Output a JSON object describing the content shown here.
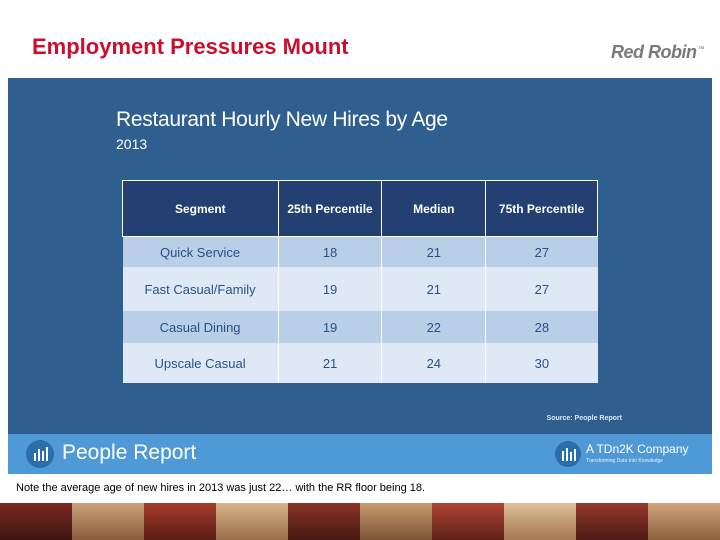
{
  "slide": {
    "title": "Employment Pressures Mount",
    "logo": "Red Robin",
    "logo_mark": "™"
  },
  "panel": {
    "title": "Restaurant Hourly New Hires by Age",
    "subtitle": "2013",
    "source": "Source: People Report"
  },
  "table": {
    "headers": [
      "Segment",
      "25th Percentile",
      "Median",
      "75th Percentile"
    ],
    "rows": [
      [
        "Quick Service",
        "18",
        "21",
        "27"
      ],
      [
        "Fast Casual/Family",
        "19",
        "21",
        "27"
      ],
      [
        "Casual Dining",
        "19",
        "22",
        "28"
      ],
      [
        "Upscale Casual",
        "21",
        "24",
        "30"
      ]
    ]
  },
  "footer": {
    "brand": "People Report",
    "company": "A TDn2K Company",
    "tagline": "Transforming Data Into Knowledge"
  },
  "note": "Note the average age of new hires in 2013 was just 22… with the RR floor being 18.",
  "colors": {
    "title_red": "#c8102e",
    "panel_blue": "#2f5f8f",
    "header_navy": "#243f72",
    "band_blue": "#4f9ad6"
  }
}
